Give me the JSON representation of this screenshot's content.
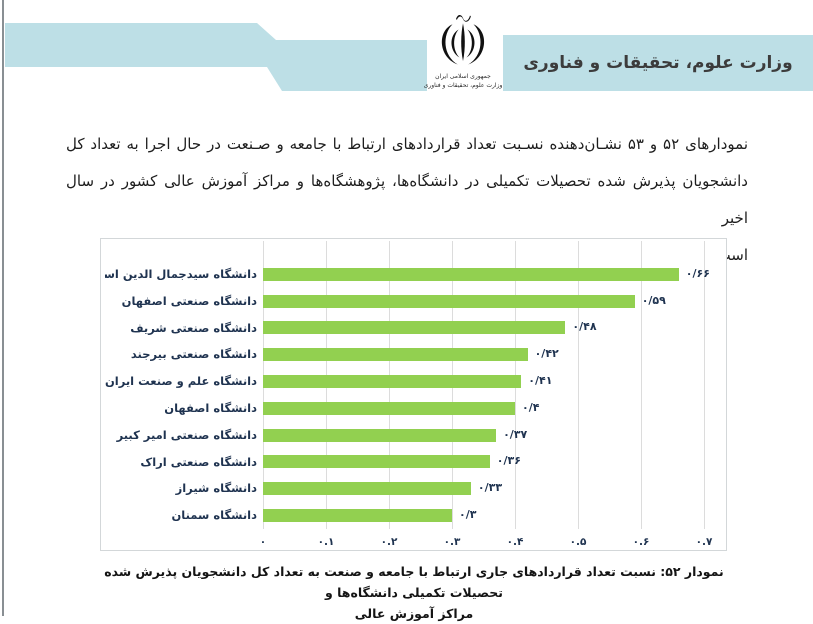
{
  "page": {
    "ministry_title": "وزارت علوم، تحقیقات و فناوری",
    "logo": {
      "emblem": "iran-national-emblem",
      "line1": "جمهوری اسلامی ایران",
      "line2": "وزارت علوم، تحقیقات و فناوری"
    },
    "intro": {
      "line1": "نمودارهای ۵۲ و ۵۳ نشـان‌دهنده نسـبت تعداد قراردادهای ارتباط با جامعه و صـنعت در حال اجرا به تعداد کل",
      "line2": "دانشجویان پذیرش شده تحصیلات تکمیلی در دانشگاه‌ها، پژوهشگاه‌ها و مراکز آموزش عالی کشور در سال اخیر",
      "line3": "است."
    },
    "caption": {
      "line1": "نمودار ۵۲: نسبت تعداد قراردادهای جاری ارتباط با جامعه و صنعت به تعداد کل دانشجویان پذیرش شده تحصیلات تکمیلی دانشگاه‌ها و",
      "line2": "مراکز آموزش عالی"
    }
  },
  "colors": {
    "banner": "#bddfe6",
    "bar": "#92d050",
    "grid": "#dcdcdc",
    "chart_text": "#1f3350",
    "emblem": "#111111"
  },
  "chart_data": {
    "type": "bar",
    "orientation": "horizontal",
    "title": "",
    "xlabel": "",
    "ylabel": "",
    "categories": [
      "دانشگاه سیدجمال الدین اسدآبادی",
      "دانشگاه صنعتی اصفهان",
      "دانشگاه صنعتی شریف",
      "دانشگاه صنعتی بیرجند",
      "دانشگاه علم و صنعت ایران",
      "دانشگاه اصفهان",
      "دانشگاه صنعتی امیر کبیر",
      "دانشگاه صنعتی اراک",
      "دانشگاه شیراز",
      "دانشگاه سمنان"
    ],
    "values": [
      0.66,
      0.59,
      0.48,
      0.42,
      0.41,
      0.4,
      0.37,
      0.36,
      0.33,
      0.3
    ],
    "value_labels": [
      "۰/۶۶",
      "۰/۵۹",
      "۰/۴۸",
      "۰/۴۲",
      "۰/۴۱",
      "۰/۴",
      "۰/۳۷",
      "۰/۳۶",
      "۰/۳۳",
      "۰/۳"
    ],
    "x_ticks": [
      "۰",
      "۰.۱",
      "۰.۲",
      "۰.۳",
      "۰.۴",
      "۰.۵",
      "۰.۶",
      "۰.۷"
    ],
    "x_tick_values": [
      0,
      0.1,
      0.2,
      0.3,
      0.4,
      0.5,
      0.6,
      0.7
    ],
    "xlim": [
      0,
      0.735
    ],
    "grid": true,
    "legend": false
  }
}
